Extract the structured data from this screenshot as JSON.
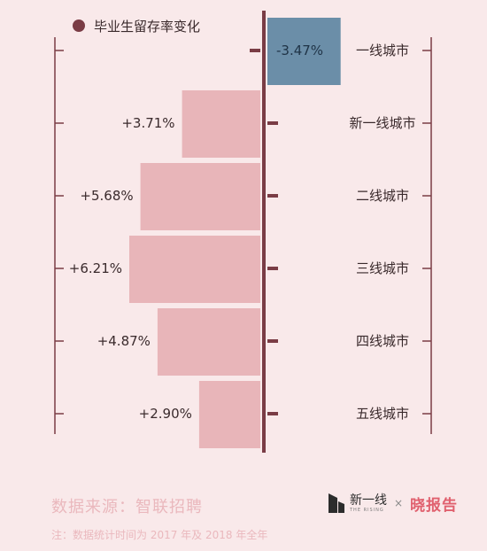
{
  "chart_data": {
    "type": "bar",
    "orientation": "horizontal-diverging",
    "legend": {
      "label": "毕业生留存率变化",
      "placement": "top-left"
    },
    "categories": [
      "一线城市",
      "新一线城市",
      "二线城市",
      "三线城市",
      "四线城市",
      "五线城市"
    ],
    "values": [
      -3.47,
      3.71,
      5.68,
      6.21,
      4.87,
      2.9
    ],
    "data_labels": [
      "-3.47%",
      "+3.71%",
      "+5.68%",
      "+6.21%",
      "+4.87%",
      "+2.90%"
    ],
    "unit": "%",
    "xlim": [
      -6.21,
      6.21
    ],
    "grid": false
  },
  "colors": {
    "background": "#f9e9ea",
    "positive_bar": "#e8b5b9",
    "negative_bar": "#6b8ea8",
    "axis": "#7a3c45",
    "legend_dot": "#7a3c45",
    "text": "#3a2a2c",
    "footer_text": "#eab8bd",
    "brand_accent": "#e0606e"
  },
  "footer": {
    "source": "数据来源：智联招聘",
    "note": "注：数据统计时间为 2017 年及 2018 年全年"
  },
  "brand": {
    "name": "新一线",
    "tagline": "THE RISING",
    "separator": "×",
    "report": "晓报告",
    "logo_icon": "building-logo-icon"
  }
}
